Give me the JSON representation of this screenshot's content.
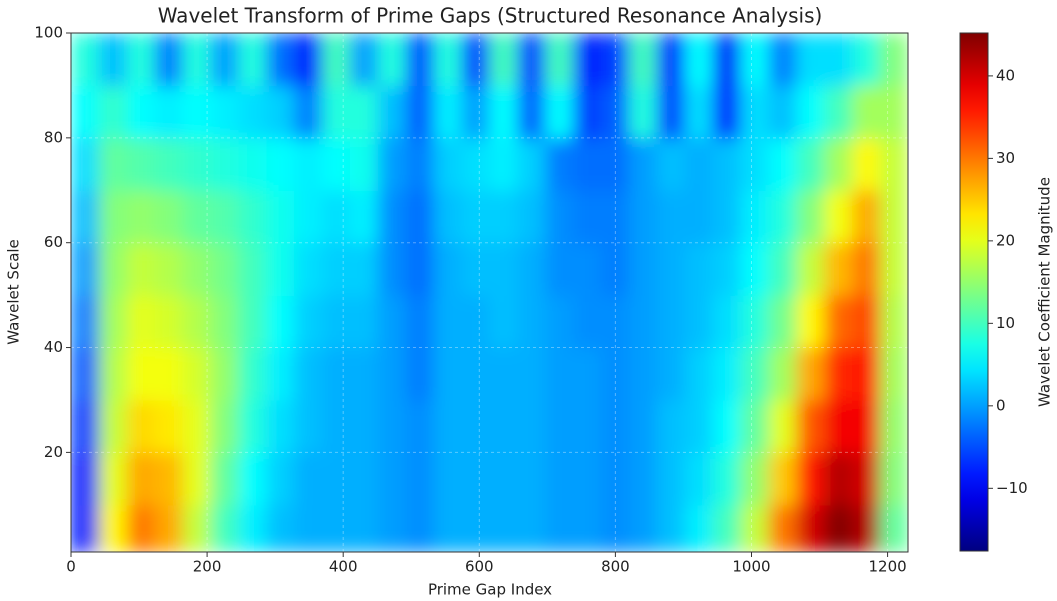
{
  "chart_data": {
    "type": "heatmap",
    "title": "Wavelet Transform of Prime Gaps (Structured Resonance Analysis)",
    "xlabel": "Prime Gap Index",
    "ylabel": "Wavelet Scale",
    "colorbar_label": "Wavelet Coefficient Magnitude",
    "colormap": "jet",
    "grid": true,
    "x_edges": [
      0,
      41,
      82,
      123,
      164,
      205,
      246,
      287,
      328,
      369,
      410,
      451,
      492,
      533,
      574,
      615,
      656,
      697,
      738,
      779,
      820,
      861,
      902,
      943,
      984,
      1025,
      1066,
      1107,
      1148,
      1189,
      1230
    ],
    "y_edges": [
      1,
      10,
      20,
      30,
      40,
      50,
      60,
      70,
      80,
      90,
      100
    ],
    "z": [
      [
        -8,
        22,
        30,
        27,
        18,
        10,
        5,
        2,
        1,
        1,
        1,
        0,
        -1,
        1,
        1,
        1,
        1,
        0,
        0,
        -1,
        0,
        2,
        5,
        10,
        18,
        30,
        40,
        45,
        42,
        12
      ],
      [
        -8,
        20,
        27,
        26,
        20,
        12,
        6,
        3,
        1,
        1,
        1,
        0,
        -1,
        1,
        1,
        1,
        1,
        0,
        0,
        -1,
        0,
        2,
        4,
        8,
        15,
        25,
        36,
        42,
        40,
        14
      ],
      [
        -6,
        18,
        24,
        23,
        20,
        14,
        8,
        4,
        2,
        1,
        1,
        0,
        -1,
        1,
        1,
        1,
        1,
        0,
        0,
        -1,
        0,
        2,
        3,
        6,
        12,
        20,
        32,
        38,
        38,
        15
      ],
      [
        -4,
        17,
        21,
        21,
        19,
        15,
        9,
        5,
        2,
        1,
        1,
        0,
        -2,
        1,
        1,
        1,
        1,
        0,
        0,
        -1,
        0,
        1,
        3,
        5,
        10,
        16,
        27,
        35,
        36,
        16
      ],
      [
        -2,
        16,
        20,
        19,
        17,
        14,
        10,
        6,
        3,
        2,
        2,
        0,
        -2,
        1,
        1,
        2,
        1,
        0,
        -1,
        -1,
        0,
        1,
        2,
        4,
        8,
        13,
        22,
        31,
        33,
        17
      ],
      [
        0,
        15,
        18,
        17,
        15,
        13,
        10,
        7,
        4,
        3,
        3,
        -1,
        -3,
        1,
        2,
        2,
        1,
        -1,
        -1,
        -2,
        0,
        1,
        2,
        3,
        6,
        10,
        18,
        26,
        30,
        18
      ],
      [
        2,
        14,
        15,
        14,
        12,
        11,
        9,
        7,
        5,
        4,
        5,
        -1,
        -3,
        2,
        3,
        3,
        2,
        -1,
        -2,
        -2,
        0,
        1,
        1,
        2,
        5,
        8,
        14,
        21,
        27,
        18
      ],
      [
        4,
        12,
        11,
        10,
        9,
        8,
        7,
        6,
        5,
        6,
        7,
        0,
        -2,
        3,
        4,
        5,
        3,
        -2,
        -3,
        -3,
        0,
        2,
        1,
        2,
        4,
        6,
        10,
        16,
        22,
        18
      ],
      [
        6,
        9,
        6,
        5,
        6,
        5,
        4,
        3,
        -2,
        8,
        8,
        2,
        -4,
        5,
        0,
        6,
        -4,
        6,
        -6,
        -4,
        8,
        -6,
        4,
        -8,
        4,
        2,
        6,
        10,
        16,
        16
      ],
      [
        8,
        2,
        8,
        -2,
        8,
        0,
        8,
        -3,
        -8,
        10,
        0,
        8,
        -5,
        8,
        -6,
        10,
        -6,
        10,
        -8,
        -6,
        10,
        -8,
        6,
        -10,
        6,
        -2,
        4,
        4,
        8,
        14
      ]
    ],
    "xlim": [
      0,
      1230
    ],
    "ylim": [
      1,
      100
    ],
    "xticks": [
      0,
      200,
      400,
      600,
      800,
      1000,
      1200
    ],
    "yticks": [
      20,
      40,
      60,
      80,
      100
    ],
    "clim": [
      -17.6,
      45.2
    ],
    "cticks": [
      {
        "value": -10,
        "label": "−10"
      },
      0,
      10,
      20,
      30,
      40
    ]
  }
}
